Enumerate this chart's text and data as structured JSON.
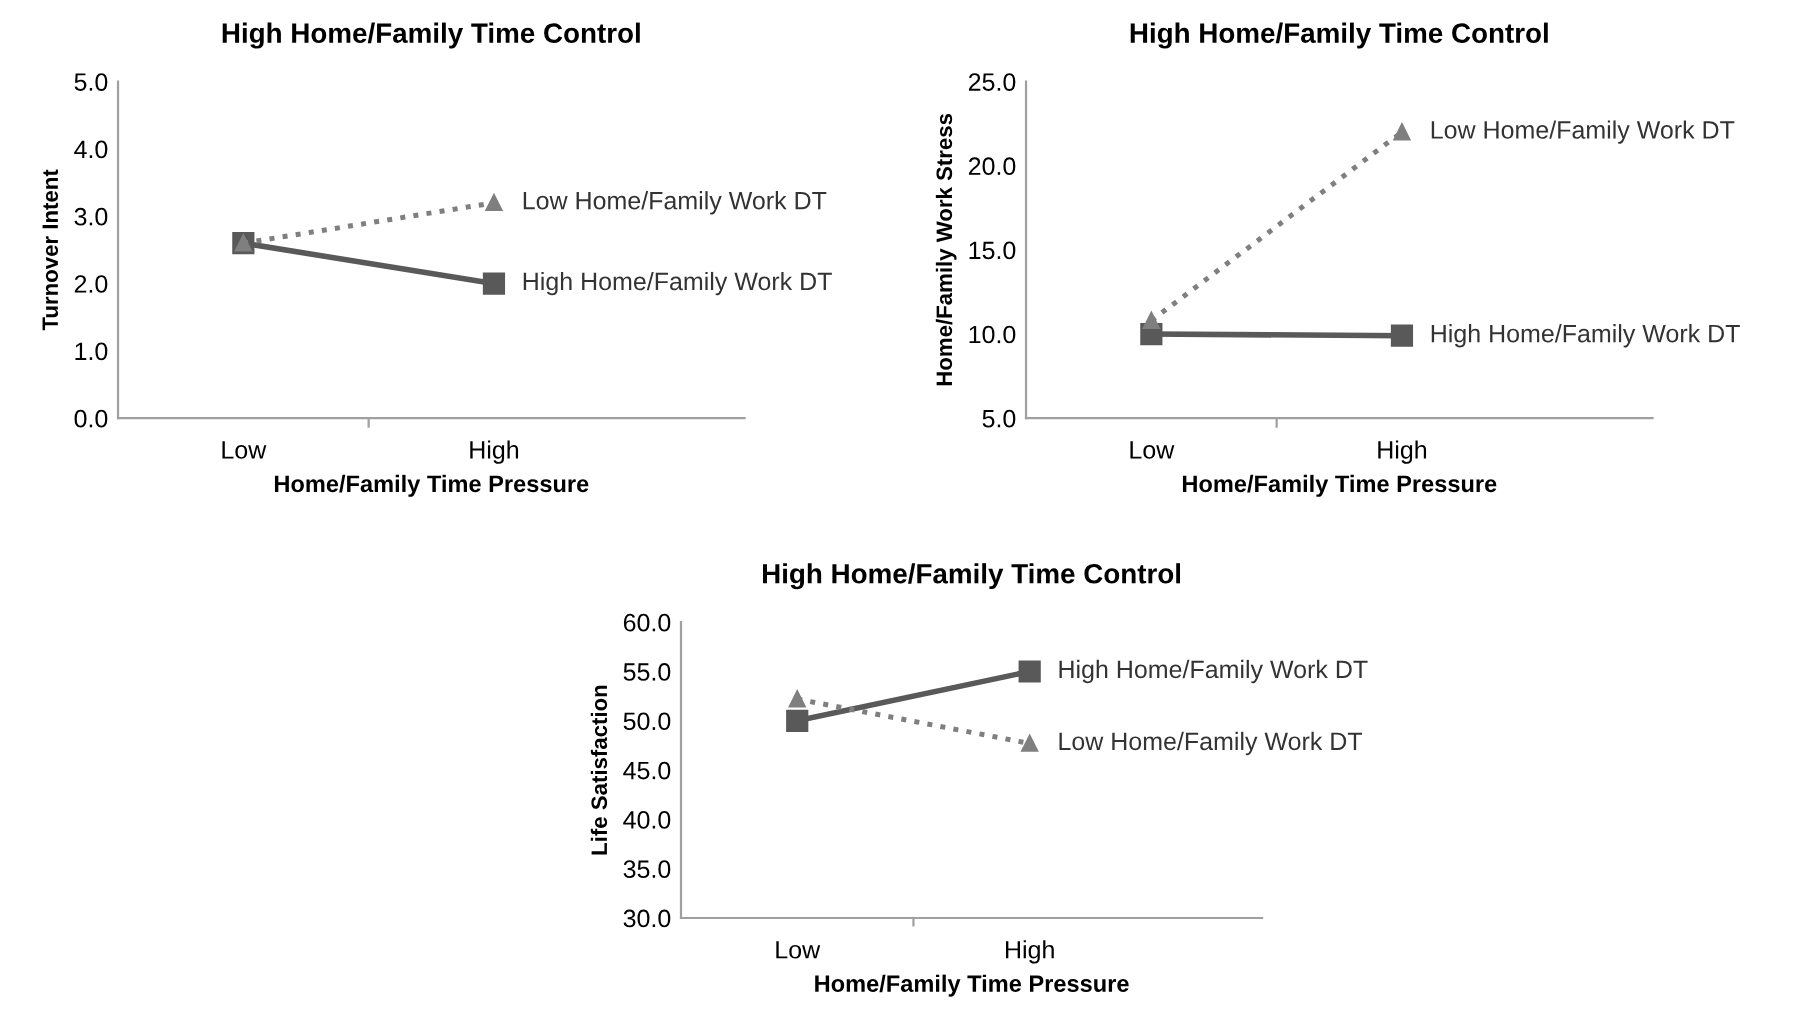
{
  "chart_data": [
    {
      "type": "line",
      "title": "High Home/Family Time Control",
      "xlabel": "Home/Family Time Pressure",
      "ylabel": "Turnover Intent",
      "categories": [
        "Low",
        "High"
      ],
      "ylim": [
        0.0,
        5.0
      ],
      "yticks": [
        {
          "value": 0,
          "label": "0.0"
        },
        {
          "value": 1,
          "label": "1.0"
        },
        {
          "value": 2,
          "label": "2.0"
        },
        {
          "value": 3,
          "label": "3.0"
        },
        {
          "value": 4,
          "label": "4.0"
        },
        {
          "value": 5,
          "label": "5.0"
        }
      ],
      "grid": false,
      "legend": false,
      "series": [
        {
          "name": "Low Home/Family Work DT",
          "color": "#7f7f7f",
          "values": [
            2.6,
            3.2
          ],
          "marker": "triangle",
          "line_style": "dotted"
        },
        {
          "name": "High Home/Family Work DT",
          "color": "#595959",
          "values": [
            2.6,
            2.0
          ],
          "marker": "square",
          "line_style": "solid"
        }
      ]
    },
    {
      "type": "line",
      "title": "High Home/Family Time Control",
      "xlabel": "Home/Family Time Pressure",
      "ylabel": "Home/Family Work Stress",
      "categories": [
        "Low",
        "High"
      ],
      "ylim": [
        5.0,
        25.0
      ],
      "yticks": [
        {
          "value": 5,
          "label": "5.0"
        },
        {
          "value": 10,
          "label": "10.0"
        },
        {
          "value": 15,
          "label": "15.0"
        },
        {
          "value": 20,
          "label": "20.0"
        },
        {
          "value": 25,
          "label": "25.0"
        }
      ],
      "grid": false,
      "legend": false,
      "series": [
        {
          "name": "Low Home/Family Work DT",
          "color": "#7f7f7f",
          "values": [
            10.8,
            22.0
          ],
          "marker": "triangle",
          "line_style": "dotted"
        },
        {
          "name": "High Home/Family Work DT",
          "color": "#595959",
          "values": [
            10.0,
            9.9
          ],
          "marker": "square",
          "line_style": "solid"
        }
      ]
    },
    {
      "type": "line",
      "title": "High Home/Family Time Control",
      "xlabel": "Home/Family Time Pressure",
      "ylabel": "Life Satisfaction",
      "categories": [
        "Low",
        "High"
      ],
      "ylim": [
        30.0,
        60.0
      ],
      "yticks": [
        {
          "value": 30,
          "label": "30.0"
        },
        {
          "value": 35,
          "label": "35.0"
        },
        {
          "value": 40,
          "label": "40.0"
        },
        {
          "value": 45,
          "label": "45.0"
        },
        {
          "value": 50,
          "label": "50.0"
        },
        {
          "value": 55,
          "label": "55.0"
        },
        {
          "value": 60,
          "label": "60.0"
        }
      ],
      "grid": false,
      "legend": false,
      "series": [
        {
          "name": "Low Home/Family Work DT",
          "color": "#7f7f7f",
          "values": [
            52.2,
            47.7
          ],
          "marker": "triangle",
          "line_style": "dotted"
        },
        {
          "name": "High Home/Family Work DT",
          "color": "#595959",
          "values": [
            50.0,
            55.0
          ],
          "marker": "square",
          "line_style": "solid"
        }
      ]
    }
  ]
}
